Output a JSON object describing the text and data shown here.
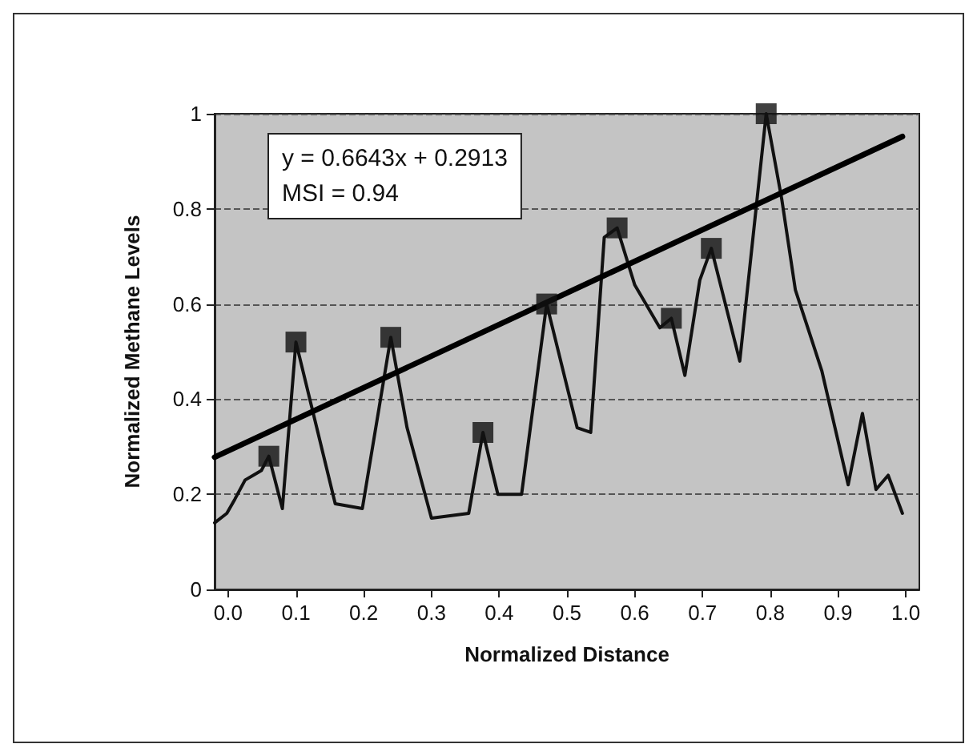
{
  "chart_data": {
    "type": "line",
    "xlabel": "Normalized Distance",
    "ylabel": "Normalized Methane Levels",
    "xlim": [
      -0.02,
      1.02
    ],
    "ylim": [
      0,
      1
    ],
    "xticks": [
      {
        "value": 0,
        "label": "0.0"
      },
      {
        "value": 0.1,
        "label": "0.1"
      },
      {
        "value": 0.2,
        "label": "0.2"
      },
      {
        "value": 0.3,
        "label": "0.3"
      },
      {
        "value": 0.4,
        "label": "0.4"
      },
      {
        "value": 0.5,
        "label": "0.5"
      },
      {
        "value": 0.6,
        "label": "0.6"
      },
      {
        "value": 0.7,
        "label": "0.7"
      },
      {
        "value": 0.8,
        "label": "0.8"
      },
      {
        "value": 0.9,
        "label": "0.9"
      },
      {
        "value": 1,
        "label": "1.0"
      }
    ],
    "yticks": [
      0,
      0.2,
      0.4,
      0.6,
      0.8,
      1
    ],
    "grid": "y",
    "annotations": [
      "y = 0.6643x + 0.2913",
      "MSI = 0.94"
    ],
    "series": [
      {
        "color": "#111111",
        "marker": "none",
        "line_style": "solid",
        "x": [
          -0.02,
          -0.002,
          0.01,
          0.025,
          0.037,
          0.049,
          0.06,
          0.08,
          0.1,
          0.158,
          0.198,
          0.24,
          0.264,
          0.3,
          0.355,
          0.376,
          0.398,
          0.433,
          0.47,
          0.515,
          0.535,
          0.555,
          0.574,
          0.6,
          0.637,
          0.654,
          0.674,
          0.696,
          0.713,
          0.755,
          0.794,
          0.817,
          0.837,
          0.876,
          0.915,
          0.936,
          0.956,
          0.974,
          0.995
        ],
        "values": [
          0.14,
          0.16,
          0.19,
          0.23,
          0.24,
          0.25,
          0.28,
          0.17,
          0.52,
          0.18,
          0.17,
          0.53,
          0.34,
          0.15,
          0.16,
          0.33,
          0.2,
          0.2,
          0.6,
          0.34,
          0.33,
          0.74,
          0.76,
          0.64,
          0.55,
          0.57,
          0.45,
          0.65,
          0.717,
          0.48,
          1.0,
          0.82,
          0.63,
          0.46,
          0.22,
          0.37,
          0.21,
          0.24,
          0.16
        ]
      },
      {
        "type": "scatter",
        "color": "#111111",
        "marker": "square",
        "x": [
          0.06,
          0.1,
          0.24,
          0.376,
          0.47,
          0.574,
          0.654,
          0.713,
          0.794
        ],
        "values": [
          0.28,
          0.52,
          0.53,
          0.33,
          0.6,
          0.76,
          0.57,
          0.717,
          1.0
        ]
      },
      {
        "color": "#000000",
        "marker": "none",
        "line_style": "solid",
        "x": [
          -0.02,
          0.995
        ],
        "values": [
          0.278,
          0.952
        ]
      }
    ]
  }
}
